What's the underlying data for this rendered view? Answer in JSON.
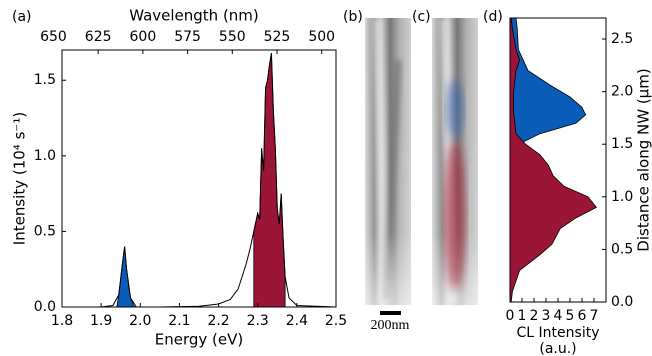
{
  "chart_data": [
    {
      "type": "area",
      "orientation": "vertical",
      "panel_label": "(a)",
      "xlabel": "Energy (eV)",
      "ylabel": "Intensity (10⁴ s⁻¹)",
      "x2label": "Wavelength (nm)",
      "xlim": [
        1.8,
        2.5
      ],
      "ylim": [
        0,
        1.7
      ],
      "x2lim": [
        662,
        492
      ],
      "xticks": [
        1.8,
        1.9,
        {
          "value": 2,
          "label": "2.0"
        },
        2.1,
        2.2,
        2.3,
        2.4,
        2.5
      ],
      "yticks": [
        {
          "value": 0,
          "label": "0.0"
        },
        0.5,
        {
          "value": 1,
          "label": "1.0"
        },
        1.5
      ],
      "x2ticks": [
        650,
        625,
        600,
        575,
        550,
        525,
        500
      ],
      "yaxis_side": "left",
      "series": [
        {
          "color": "#0b5cb8",
          "fill": true,
          "x": [
            1.94,
            1.945,
            1.955,
            1.96,
            1.965,
            1.975,
            1.985
          ],
          "values": [
            0,
            0.08,
            0.3,
            0.4,
            0.25,
            0.06,
            0
          ]
        },
        {
          "color": "#9a1536",
          "fill": true,
          "x": [
            2.29,
            2.3,
            2.305,
            2.31,
            2.315,
            2.32,
            2.325,
            2.33,
            2.335,
            2.34,
            2.345,
            2.35,
            2.355,
            2.36,
            2.365,
            2.37
          ],
          "values": [
            0.5,
            0.62,
            0.58,
            1.05,
            0.9,
            1.45,
            1.5,
            1.6,
            1.68,
            1.3,
            1.05,
            0.65,
            0.55,
            0.75,
            0.45,
            0.2
          ]
        },
        {
          "color": "#000000",
          "fill": false,
          "x": [
            1.8,
            1.9,
            1.93,
            1.945,
            1.955,
            1.96,
            1.965,
            1.975,
            1.99,
            2.05,
            2.15,
            2.2,
            2.23,
            2.25,
            2.26,
            2.27,
            2.28,
            2.29,
            2.3,
            2.305,
            2.31,
            2.315,
            2.32,
            2.325,
            2.33,
            2.335,
            2.34,
            2.345,
            2.35,
            2.355,
            2.36,
            2.365,
            2.37,
            2.38,
            2.4,
            2.5
          ],
          "values": [
            0,
            0,
            0.01,
            0.08,
            0.3,
            0.4,
            0.25,
            0.06,
            0,
            0,
            0.005,
            0.02,
            0.05,
            0.12,
            0.2,
            0.28,
            0.38,
            0.5,
            0.62,
            0.58,
            1.05,
            0.9,
            1.45,
            1.5,
            1.6,
            1.68,
            1.3,
            1.05,
            0.65,
            0.55,
            0.75,
            0.45,
            0.2,
            0.06,
            0.01,
            0
          ]
        }
      ]
    },
    {
      "type": "area",
      "orientation": "horizontal",
      "panel_label": "(d)",
      "xlabel": [
        "CL Intensity",
        "(a.u.)"
      ],
      "ylabel": "Distance along NW (μm)",
      "xlim": [
        0,
        8
      ],
      "ylim": [
        0,
        2.7
      ],
      "xticks": [
        0,
        1,
        2,
        3,
        4,
        5,
        6,
        7
      ],
      "yticks": [
        {
          "value": 0,
          "label": "0.0"
        },
        0.5,
        {
          "value": 1,
          "label": "1.0"
        },
        1.5,
        {
          "value": 2,
          "label": "2.0"
        },
        2.5
      ],
      "yaxis_side": "right",
      "series": [
        {
          "color": "#0b5cb8",
          "fill": true,
          "y": [
            1.4,
            1.5,
            1.6,
            1.7,
            1.78,
            1.85,
            1.95,
            2.05,
            2.2,
            2.4,
            2.6,
            2.7
          ],
          "values": [
            0.1,
            0.7,
            2.5,
            5.5,
            6.3,
            6.0,
            5.0,
            3.5,
            1.5,
            0.7,
            0.6,
            0.5
          ]
        },
        {
          "color": "#9a1536",
          "fill": true,
          "y": [
            0,
            0.1,
            0.3,
            0.45,
            0.55,
            0.7,
            0.8,
            0.9,
            1.0,
            1.1,
            1.2,
            1.3,
            1.4,
            1.5,
            1.6,
            1.8,
            2.0,
            2.2,
            2.3,
            2.4,
            2.6,
            2.7
          ],
          "values": [
            0.1,
            0.2,
            0.8,
            2.5,
            3.5,
            4.2,
            5.5,
            7.2,
            6.5,
            4.5,
            3.6,
            3.2,
            2.5,
            1.3,
            0.5,
            0.3,
            0.3,
            0.5,
            0.8,
            0.5,
            0.2,
            0.1
          ]
        }
      ]
    }
  ],
  "images": [
    {
      "panel_label": "(b)"
    },
    {
      "panel_label": "(c)"
    }
  ],
  "scale_bar": "200nm"
}
